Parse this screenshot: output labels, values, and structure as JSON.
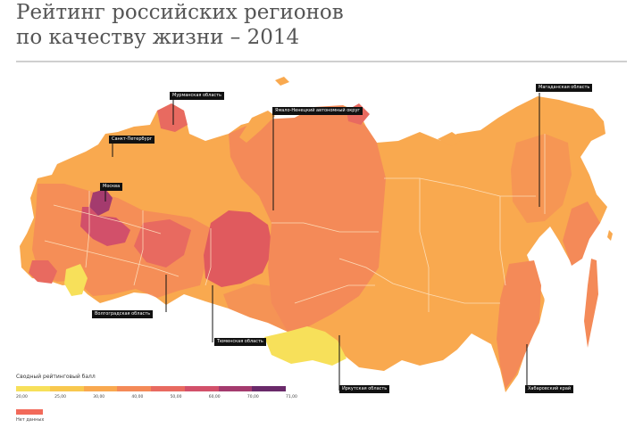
{
  "title": {
    "line1": "Рейтинг российских регионов",
    "line2": "по качеству жизни – 2014"
  },
  "callouts": [
    {
      "id": "murmansk",
      "label": "Мурманская область"
    },
    {
      "id": "spb",
      "label": "Санкт-Петербург"
    },
    {
      "id": "moscow",
      "label": "Москва"
    },
    {
      "id": "yamal",
      "label": "Ямало-Ненецкий автономный округ"
    },
    {
      "id": "magadan",
      "label": "Магаданская область"
    },
    {
      "id": "volgograd",
      "label": "Волгоградская область"
    },
    {
      "id": "tyumen",
      "label": "Тюменская область"
    },
    {
      "id": "irkutsk",
      "label": "Иркутская область"
    },
    {
      "id": "khabarovsk",
      "label": "Хабаровский край"
    }
  ],
  "legend": {
    "title": "Сводный рейтинговый балл",
    "colors": [
      "#f7e05a",
      "#f8c84e",
      "#f9a94f",
      "#f48a58",
      "#e86a60",
      "#d2506a",
      "#a43b6e",
      "#6a2a6a"
    ],
    "ticks": [
      "20,00",
      "25,00",
      "30,00",
      "40,00",
      "50,00",
      "60,00",
      "70,00",
      "71,00"
    ],
    "nodata_label": "Нет данных"
  },
  "colors": {
    "sea": "#ffffff",
    "land_main": "#f9a94f",
    "land_mid": "#f48a58",
    "land_dark": "#e86a60",
    "land_high": "#d2506a",
    "land_top": "#a43b6e",
    "land_low": "#f7e05a",
    "borders": "#fde2c0"
  }
}
